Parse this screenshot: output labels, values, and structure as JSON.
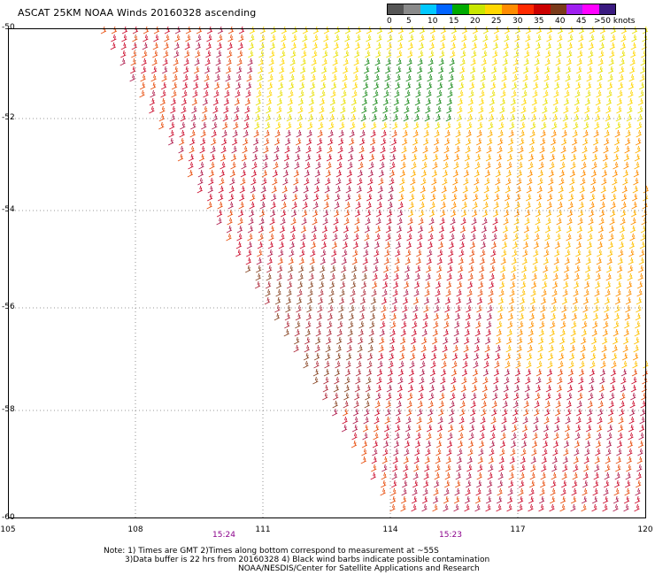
{
  "title": "ASCAT 25KM NOAA Winds 20160328 ascending",
  "legend": {
    "colors": [
      "#555555",
      "#8a8a8a",
      "#00c8ff",
      "#0064ff",
      "#00aa00",
      "#c8e600",
      "#ffd700",
      "#ff8c00",
      "#ff2a00",
      "#cc0000",
      "#7a3a1a",
      "#a020f0",
      "#ff00ff",
      "#3a1a80"
    ],
    "labels": [
      "0",
      "5",
      "10",
      "15",
      "20",
      "25",
      "30",
      "35",
      "40",
      "45",
      ">50 knots"
    ]
  },
  "axes": {
    "lat_labels": [
      "-50",
      "-52",
      "-54",
      "-56",
      "-58",
      "-60"
    ],
    "lon_labels": [
      "105",
      "108",
      "111",
      "114",
      "117",
      "120"
    ]
  },
  "times": [
    "15:24",
    "15:23"
  ],
  "note": {
    "line1": "Note: 1) Times are GMT 2)Times along bottom correspond to measurement at ~55S",
    "line2": "3)Data buffer is 22 hrs from 20160328 4) Black wind barbs indicate possible contamination",
    "line3": "NOAA/NESDIS/Center for Satellite Applications and Research"
  }
}
